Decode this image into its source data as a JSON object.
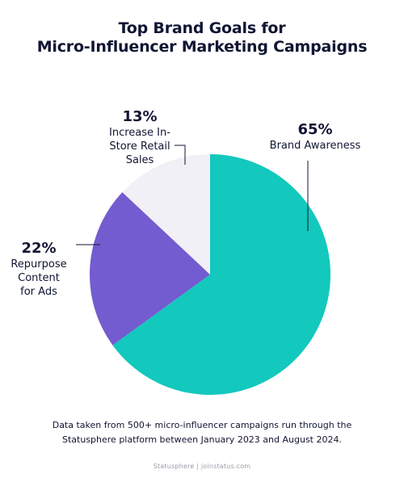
{
  "chart_data": {
    "type": "pie",
    "title": [
      "Top Brand Goals for",
      "Micro-Influencer Marketing Campaigns"
    ],
    "slices": [
      {
        "pct_label": "65%",
        "label_lines": [
          "Brand Awareness"
        ],
        "value": 65,
        "color": "#13c8bd"
      },
      {
        "pct_label": "22%",
        "label_lines": [
          "Repurpose",
          "Content",
          "for Ads"
        ],
        "value": 22,
        "color": "#735ccf"
      },
      {
        "pct_label": "13%",
        "label_lines": [
          "Increase In-",
          "Store Retail",
          "Sales"
        ],
        "value": 13,
        "color": "#f1f0f6"
      }
    ]
  },
  "footnote": [
    "Data taken from 500+ micro-influencer campaigns run through the",
    "Statusphere platform between January 2023 and August 2024."
  ],
  "source": "Statusphere | joinstatus.com"
}
